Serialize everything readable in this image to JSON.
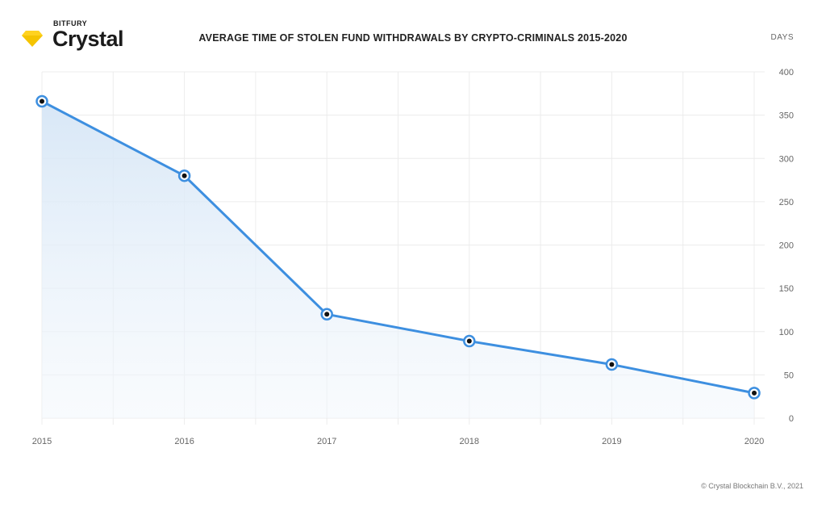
{
  "brand": {
    "super": "BITFURY",
    "name": "Crystal"
  },
  "colors": {
    "line": "#3d8fe0",
    "fill": "#dbe9f7",
    "grid": "#ececec",
    "brand": "#f5c400",
    "axis_text": "#666666"
  },
  "footer": {
    "copyright": "© Crystal Blockchain B.V., 2021"
  },
  "chart_data": {
    "type": "area",
    "title": "AVERAGE TIME OF STOLEN FUND WITHDRAWALS BY CRYPTO-CRIMINALS 2015-2020",
    "y_unit_label": "DAYS",
    "x": [
      "2015",
      "2016",
      "2017",
      "2018",
      "2019",
      "2020"
    ],
    "values": [
      366,
      280,
      120,
      89,
      62,
      29
    ],
    "ylim": [
      0,
      400
    ],
    "yticks": [
      0,
      50,
      100,
      150,
      200,
      250,
      300,
      350,
      400
    ],
    "grid": true,
    "y_axis_side": "right",
    "legend": "none"
  }
}
